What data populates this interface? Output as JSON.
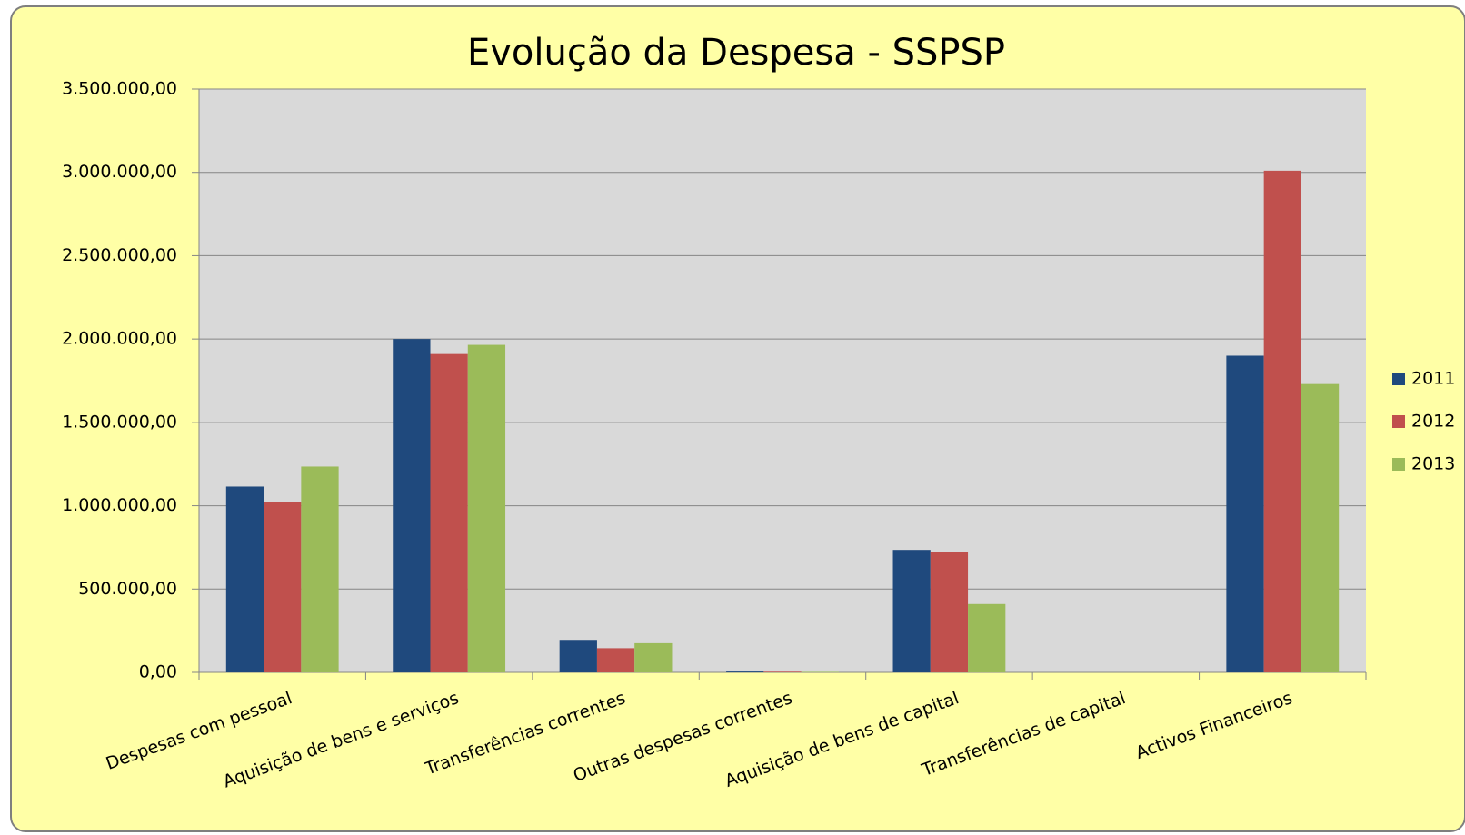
{
  "chart_data": {
    "type": "bar",
    "title": "Evolução da Despesa - SSPSP",
    "categories": [
      "Despesas com pessoal",
      "Aquisição de bens e serviços",
      "Transferências correntes",
      "Outras despesas correntes",
      "Aquisição de bens de capital",
      "Transferências de capital",
      "Activos Financeiros"
    ],
    "series": [
      {
        "name": "2011",
        "color": "#1f497d",
        "values": [
          1115000,
          2000000,
          195000,
          5000,
          735000,
          0,
          1900000
        ]
      },
      {
        "name": "2012",
        "color": "#c0504d",
        "values": [
          1020000,
          1910000,
          145000,
          4000,
          725000,
          0,
          3010000
        ]
      },
      {
        "name": "2013",
        "color": "#9bbb59",
        "values": [
          1235000,
          1965000,
          175000,
          3000,
          410000,
          0,
          1730000
        ]
      }
    ],
    "ylim": [
      0,
      3500000
    ],
    "yticks": [
      {
        "value": 0,
        "label": "0,00"
      },
      {
        "value": 500000,
        "label": "500.000,00"
      },
      {
        "value": 1000000,
        "label": "1.000.000,00"
      },
      {
        "value": 1500000,
        "label": "1.500.000,00"
      },
      {
        "value": 2000000,
        "label": "2.000.000,00"
      },
      {
        "value": 2500000,
        "label": "2.500.000,00"
      },
      {
        "value": 3000000,
        "label": "3.000.000,00"
      },
      {
        "value": 3500000,
        "label": "3.500.000,00"
      }
    ],
    "grid": true,
    "legend": "right"
  }
}
